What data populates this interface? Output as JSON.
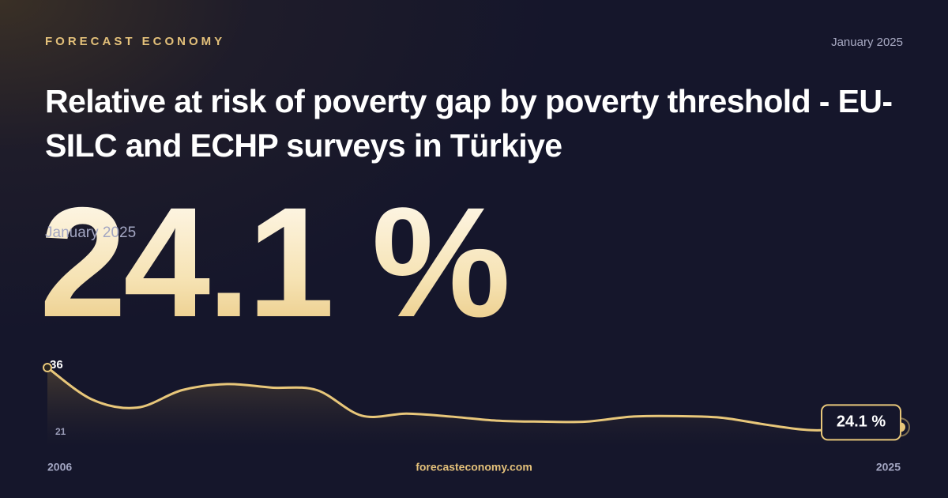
{
  "brand": "FORECAST ECONOMY",
  "date": "January 2025",
  "site": "forecasteconomy.com",
  "chart_data": {
    "type": "line",
    "title": "Relative at risk of poverty gap by poverty threshold - EU-SILC and ECHP surveys in Türkiye",
    "subtitle": "January 2025",
    "x": [
      2006,
      2007,
      2008,
      2009,
      2010,
      2011,
      2012,
      2013,
      2014,
      2015,
      2016,
      2017,
      2018,
      2019,
      2020,
      2021,
      2022,
      2023,
      2024,
      2025
    ],
    "values": [
      36,
      29.6,
      28,
      31.5,
      32.7,
      32,
      31.5,
      26.4,
      26.8,
      26.2,
      25.4,
      25.2,
      25.2,
      26.2,
      26.3,
      26,
      24.6,
      23.5,
      23.8,
      24.1
    ],
    "value_labels": [
      null,
      null,
      null,
      null,
      null,
      null,
      null,
      null,
      null,
      null,
      null,
      null,
      null,
      null,
      null,
      null,
      null,
      null,
      null,
      "24.1 %"
    ],
    "color": "#e8c77a",
    "xlim": [
      2006,
      2025
    ],
    "xticks": [
      2006,
      2025
    ],
    "ylim": [
      21,
      36
    ],
    "yticks": [
      21,
      36
    ]
  }
}
